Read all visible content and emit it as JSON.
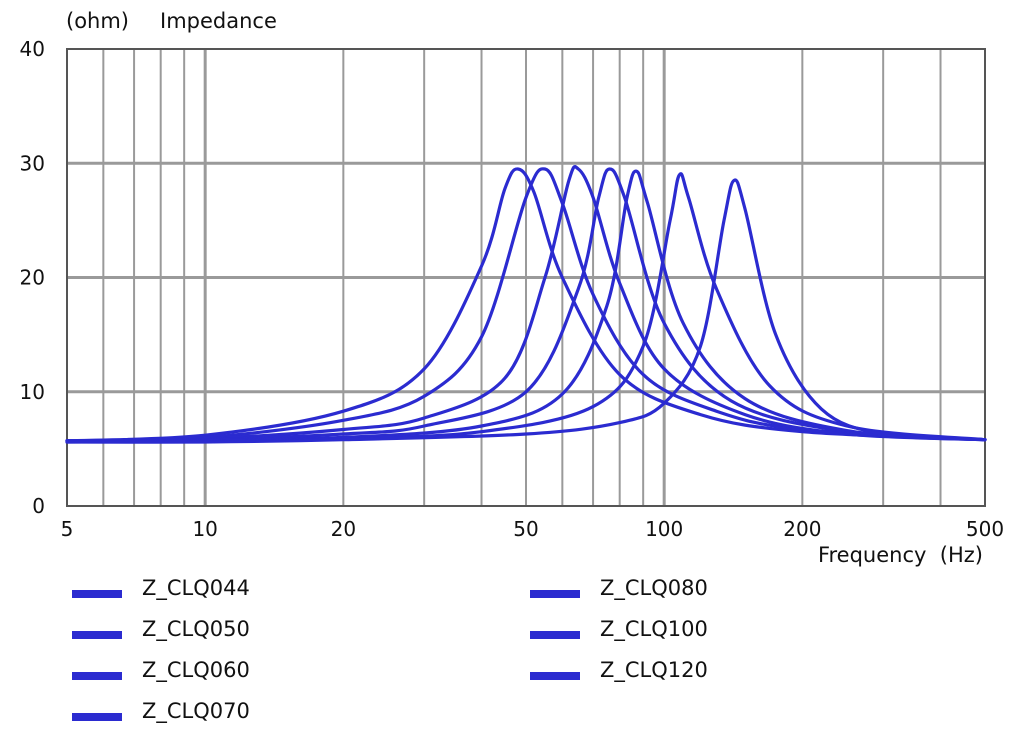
{
  "chart_data": {
    "type": "line",
    "x_scale": "log",
    "ylabel_unit": "(ohm)",
    "ylabel": "Impedance",
    "xlabel": "Frequency  (Hz)",
    "xlim": [
      5,
      500
    ],
    "ylim": [
      0,
      40
    ],
    "x_ticks": [
      {
        "value": 5,
        "label": "5"
      },
      {
        "value": 10,
        "label": "10"
      },
      {
        "value": 20,
        "label": "20"
      },
      {
        "value": 50,
        "label": "50"
      },
      {
        "value": 100,
        "label": "100"
      },
      {
        "value": 200,
        "label": "200"
      },
      {
        "value": 500,
        "label": "500"
      }
    ],
    "y_ticks": [
      {
        "value": 0,
        "label": "0"
      },
      {
        "value": 10,
        "label": "10"
      },
      {
        "value": 20,
        "label": "20"
      },
      {
        "value": 30,
        "label": "30"
      },
      {
        "value": 40,
        "label": "40"
      }
    ],
    "grid": true,
    "line_color": "#2b2bd0",
    "legend_position": "bottom",
    "series": [
      {
        "name": "Z_CLQ044",
        "x": [
          5,
          10,
          20,
          30,
          40,
          45,
          48,
          52,
          60,
          80,
          120,
          200,
          500
        ],
        "y": [
          5.7,
          6.2,
          8.3,
          12.0,
          21.0,
          27.8,
          29.5,
          27.5,
          20.0,
          11.5,
          8.0,
          6.5,
          5.8
        ]
      },
      {
        "name": "Z_CLQ050",
        "x": [
          5,
          10,
          20,
          30,
          40,
          50,
          55,
          60,
          70,
          90,
          130,
          200,
          500
        ],
        "y": [
          5.7,
          6.0,
          7.5,
          9.6,
          14.8,
          27.0,
          29.5,
          26.5,
          18.5,
          11.5,
          8.3,
          6.7,
          5.8
        ]
      },
      {
        "name": "Z_CLQ060",
        "x": [
          5,
          10,
          20,
          30,
          45,
          55,
          62,
          65,
          70,
          80,
          100,
          150,
          250,
          500
        ],
        "y": [
          5.7,
          5.9,
          6.7,
          7.7,
          11.2,
          20.0,
          28.5,
          29.5,
          27.0,
          19.5,
          12.0,
          8.0,
          6.3,
          5.8
        ]
      },
      {
        "name": "Z_CLQ070",
        "x": [
          5,
          10,
          20,
          30,
          50,
          65,
          72,
          76,
          82,
          100,
          140,
          250,
          500
        ],
        "y": [
          5.7,
          5.8,
          6.3,
          7.0,
          10.0,
          19.0,
          27.0,
          29.5,
          27.0,
          16.0,
          9.2,
          6.5,
          5.8
        ]
      },
      {
        "name": "Z_CLQ080",
        "x": [
          5,
          10,
          20,
          40,
          60,
          75,
          83,
          87,
          92,
          110,
          150,
          250,
          500
        ],
        "y": [
          5.7,
          5.8,
          6.0,
          7.0,
          9.8,
          17.5,
          27.0,
          29.3,
          26.5,
          16.0,
          9.4,
          6.6,
          5.8
        ]
      },
      {
        "name": "Z_CLQ100",
        "x": [
          5,
          10,
          20,
          40,
          70,
          90,
          103,
          108,
          113,
          130,
          170,
          250,
          500
        ],
        "y": [
          5.6,
          5.7,
          5.9,
          6.5,
          8.7,
          14.0,
          25.0,
          29.0,
          27.0,
          19.0,
          10.5,
          7.0,
          5.8
        ]
      },
      {
        "name": "Z_CLQ120",
        "x": [
          5,
          10,
          20,
          50,
          80,
          100,
          120,
          135,
          142,
          150,
          175,
          220,
          300,
          500
        ],
        "y": [
          5.6,
          5.6,
          5.8,
          6.3,
          7.3,
          9.0,
          14.0,
          25.0,
          28.5,
          26.0,
          15.0,
          8.5,
          6.3,
          5.8
        ]
      }
    ]
  }
}
